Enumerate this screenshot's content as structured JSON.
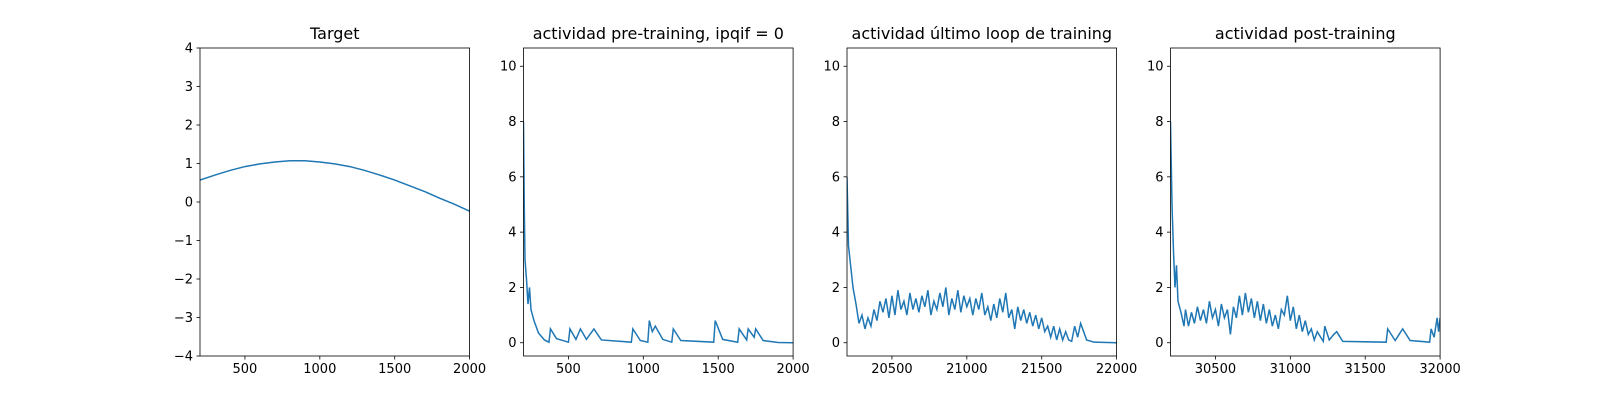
{
  "chart_data": [
    {
      "type": "line",
      "title": "Target",
      "color": "#1f77b4",
      "x": [
        200,
        300,
        400,
        500,
        600,
        700,
        800,
        900,
        1000,
        1100,
        1200,
        1300,
        1400,
        1500,
        1600,
        1700,
        1800,
        1900,
        2000
      ],
      "values": [
        0.57,
        0.7,
        0.82,
        0.92,
        0.99,
        1.04,
        1.07,
        1.07,
        1.04,
        0.99,
        0.92,
        0.82,
        0.7,
        0.57,
        0.42,
        0.27,
        0.1,
        -0.06,
        -0.24
      ],
      "xlim": [
        200,
        2000
      ],
      "xticks": [
        500,
        1000,
        1500,
        2000
      ],
      "ylim": [
        -4,
        4
      ],
      "yticks": [
        {
          "value": -4,
          "label": "−4"
        },
        {
          "value": -3,
          "label": "−3"
        },
        {
          "value": -2,
          "label": "−2"
        },
        {
          "value": -1,
          "label": "−1"
        },
        0,
        1,
        2,
        3,
        4
      ]
    },
    {
      "type": "line",
      "title": "actividad pre-training, ipqif = 0",
      "color": "#1f77b4",
      "x": [
        200,
        205,
        210,
        220,
        230,
        240,
        250,
        270,
        300,
        340,
        370,
        380,
        420,
        500,
        510,
        550,
        580,
        620,
        670,
        720,
        920,
        930,
        980,
        1030,
        1040,
        1060,
        1080,
        1130,
        1190,
        1200,
        1250,
        1470,
        1480,
        1530,
        1630,
        1640,
        1690,
        1700,
        1740,
        1750,
        1800,
        1900,
        2000
      ],
      "values": [
        8,
        5,
        3,
        2.3,
        1.4,
        2.0,
        1.2,
        0.8,
        0.35,
        0.1,
        0.02,
        0.5,
        0.15,
        0.02,
        0.5,
        0.12,
        0.5,
        0.12,
        0.5,
        0.1,
        0.02,
        0.5,
        0.08,
        0.02,
        0.8,
        0.4,
        0.6,
        0.12,
        0.02,
        0.5,
        0.08,
        0.02,
        0.8,
        0.12,
        0.02,
        0.5,
        0.1,
        0.5,
        0.2,
        0.5,
        0.08,
        0.01,
        0
      ],
      "xlim": [
        200,
        2000
      ],
      "xticks": [
        500,
        1000,
        1500,
        2000
      ],
      "ylim": [
        -0.48,
        10.66
      ],
      "yticks": [
        0,
        2,
        4,
        6,
        8,
        10
      ]
    },
    {
      "type": "line",
      "title": "actividad último loop de training",
      "color": "#1f77b4",
      "x": [
        20200,
        20210,
        20220,
        20240,
        20260,
        20280,
        20300,
        20320,
        20340,
        20360,
        20380,
        20400,
        20420,
        20440,
        20460,
        20480,
        20500,
        20520,
        20540,
        20560,
        20580,
        20600,
        20620,
        20640,
        20660,
        20680,
        20700,
        20720,
        20740,
        20760,
        20780,
        20800,
        20820,
        20840,
        20860,
        20880,
        20900,
        20920,
        20940,
        20960,
        20980,
        21000,
        21020,
        21040,
        21060,
        21080,
        21100,
        21120,
        21140,
        21160,
        21180,
        21200,
        21220,
        21240,
        21260,
        21280,
        21300,
        21320,
        21340,
        21360,
        21380,
        21400,
        21420,
        21440,
        21460,
        21480,
        21500,
        21520,
        21540,
        21560,
        21580,
        21600,
        21620,
        21640,
        21660,
        21680,
        21700,
        21720,
        21740,
        21760,
        21800,
        21850,
        22000
      ],
      "values": [
        6,
        3.5,
        3,
        2,
        1.4,
        0.7,
        1.0,
        0.5,
        0.9,
        0.6,
        1.2,
        0.8,
        1.5,
        1.1,
        1.6,
        0.9,
        1.7,
        1.0,
        1.9,
        1.2,
        1.5,
        1.0,
        1.8,
        1.2,
        1.6,
        1.1,
        1.7,
        1.3,
        1.9,
        1.0,
        1.5,
        1.2,
        1.8,
        1.3,
        2.0,
        1.0,
        1.6,
        1.2,
        1.9,
        1.1,
        1.7,
        1.3,
        1.6,
        1.0,
        1.6,
        1.2,
        1.8,
        1.0,
        1.3,
        0.8,
        1.4,
        0.9,
        1.6,
        1.1,
        1.8,
        0.9,
        1.2,
        0.5,
        1.3,
        0.8,
        1.2,
        0.7,
        1.1,
        0.6,
        1.0,
        0.5,
        0.9,
        0.4,
        0.6,
        0.2,
        0.6,
        0.1,
        0.5,
        0.1,
        0.4,
        0.1,
        0.05,
        0.6,
        0.2,
        0.7,
        0.1,
        0.02,
        0
      ],
      "xlim": [
        20200,
        22000
      ],
      "xticks": [
        20500,
        21000,
        21500,
        22000
      ],
      "ylim": [
        -0.48,
        10.66
      ],
      "yticks": [
        0,
        2,
        4,
        6,
        8,
        10
      ]
    },
    {
      "type": "line",
      "title": "actividad post-training",
      "color": "#1f77b4",
      "x": [
        30200,
        30210,
        30220,
        30230,
        30240,
        30250,
        30270,
        30290,
        30300,
        30320,
        30340,
        30360,
        30380,
        30400,
        30420,
        30440,
        30460,
        30480,
        30500,
        30520,
        30540,
        30560,
        30580,
        30600,
        30620,
        30640,
        30660,
        30680,
        30700,
        30720,
        30740,
        30760,
        30780,
        30800,
        30820,
        30840,
        30860,
        30880,
        30900,
        30920,
        30940,
        30960,
        30980,
        31000,
        31020,
        31040,
        31060,
        31080,
        31100,
        31120,
        31140,
        31160,
        31180,
        31220,
        31230,
        31260,
        31290,
        31310,
        31350,
        31640,
        31650,
        31700,
        31750,
        31800,
        31930,
        31940,
        31960,
        31980,
        31990,
        32000
      ],
      "values": [
        8,
        5,
        3.3,
        2,
        2.8,
        1.5,
        1.1,
        0.6,
        1.2,
        0.6,
        1.1,
        0.7,
        1.3,
        0.8,
        1.2,
        0.7,
        1.5,
        0.9,
        1.2,
        0.6,
        1.4,
        0.9,
        1.2,
        0.3,
        1.3,
        0.9,
        1.7,
        1.0,
        1.8,
        1.1,
        1.6,
        0.9,
        1.5,
        0.8,
        1.4,
        0.7,
        1.2,
        0.6,
        1.0,
        0.5,
        1.2,
        1.0,
        1.7,
        0.8,
        1.3,
        0.5,
        1.0,
        0.4,
        0.8,
        0.3,
        0.5,
        0.1,
        0.4,
        0.05,
        0.6,
        0.1,
        0.3,
        0.4,
        0.05,
        0.02,
        0.5,
        0.08,
        0.5,
        0.08,
        0.02,
        0.5,
        0.2,
        0.9,
        0.4,
        0.9
      ],
      "xlim": [
        30200,
        32000
      ],
      "xticks": [
        30500,
        31000,
        31500,
        32000
      ],
      "ylim": [
        -0.48,
        10.66
      ],
      "yticks": [
        0,
        2,
        4,
        6,
        8,
        10
      ]
    }
  ]
}
